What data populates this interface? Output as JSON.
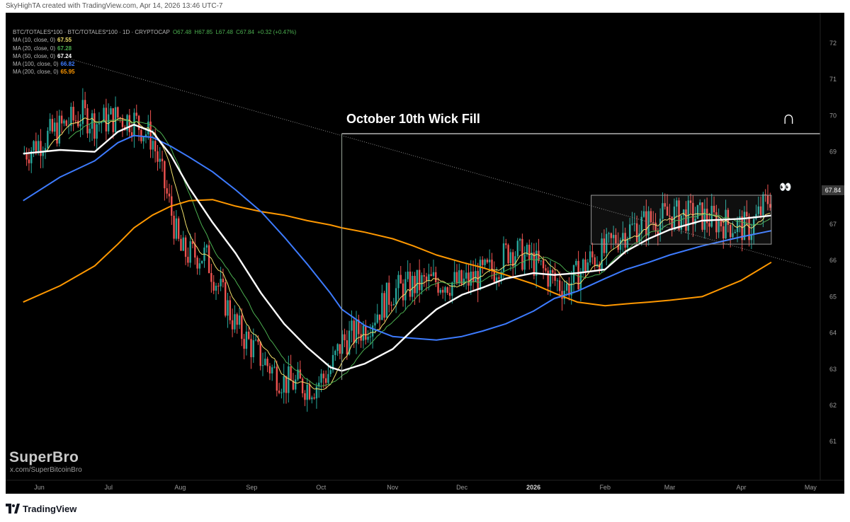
{
  "header": {
    "created_by": "SkyHighTA created with TradingView.com, Apr 14, 2026 13:46 UTC-7"
  },
  "symbol_line": {
    "symbol": "BTC/TOTALES*100 · BTC/TOTALES*100 · 1D · CRYPTOCAP",
    "open": "O67.48",
    "high": "H67.85",
    "low": "L67.48",
    "close": "C67.84",
    "change": "+0.32 (+0.47%)"
  },
  "legend": [
    {
      "label": "MA (10, close, 0)",
      "value": "67.55",
      "color": "#f2e06b"
    },
    {
      "label": "MA (20, close, 0)",
      "value": "67.28",
      "color": "#4caf50"
    },
    {
      "label": "MA (50, close, 0)",
      "value": "67.24",
      "color": "#ffffff"
    },
    {
      "label": "MA (100, close, 0)",
      "value": "66.82",
      "color": "#3d7bff"
    },
    {
      "label": "MA (200, close, 0)",
      "value": "65.95",
      "color": "#ff9800"
    }
  ],
  "annotation": {
    "label": "October 10th Wick Fill",
    "magnet_icon": "magnet-emoji",
    "eyes_icon": "eyes-emoji",
    "magnet_glyph": "∩",
    "eyes_glyph": "👀"
  },
  "price_tag": "67.84",
  "watermark": {
    "brand": "SuperBro",
    "handle": "x.com/SuperBitcoinBro"
  },
  "footer": {
    "brand": "TradingView",
    "icon": "tradingview-logo-icon"
  },
  "colors": {
    "up": "#26a69a",
    "down": "#ef5350",
    "ma10": "#f2e06b",
    "ma20": "#4caf50",
    "ma50": "#ffffff",
    "ma100": "#3d7bff",
    "ma200": "#ff9800"
  },
  "chart_data": {
    "type": "line",
    "title": "",
    "ylim": [
      60.2,
      73.0
    ],
    "yticks": [
      "72",
      "71",
      "70",
      "69",
      "68",
      "67",
      "66",
      "65",
      "64",
      "63",
      "62",
      "61"
    ],
    "xticks": [
      "Jun",
      "Jul",
      "Aug",
      "Sep",
      "Oct",
      "Nov",
      "Dec",
      "2026",
      "Feb",
      "Mar",
      "Apr",
      "May"
    ],
    "x": [
      "2025-05-25",
      "2025-06-10",
      "2025-06-25",
      "2025-07-05",
      "2025-07-12",
      "2025-07-20",
      "2025-07-28",
      "2025-08-05",
      "2025-08-15",
      "2025-08-25",
      "2025-09-05",
      "2025-09-15",
      "2025-09-25",
      "2025-10-05",
      "2025-10-10",
      "2025-10-20",
      "2025-11-01",
      "2025-11-10",
      "2025-11-20",
      "2025-12-01",
      "2025-12-10",
      "2025-12-20",
      "2026-01-01",
      "2026-01-10",
      "2026-01-20",
      "2026-02-01",
      "2026-02-10",
      "2026-02-20",
      "2026-03-01",
      "2026-03-15",
      "2026-04-01",
      "2026-04-14"
    ],
    "series": [
      {
        "name": "MA (200, close, 0)",
        "color": "#ff9800",
        "values": [
          64.85,
          65.3,
          65.85,
          66.45,
          66.9,
          67.25,
          67.5,
          67.65,
          67.68,
          67.5,
          67.35,
          67.25,
          67.1,
          66.98,
          66.9,
          66.78,
          66.6,
          66.4,
          66.15,
          65.95,
          65.8,
          65.6,
          65.35,
          65.1,
          64.85,
          64.75,
          64.8,
          64.85,
          64.9,
          65.0,
          65.45,
          65.95
        ]
      },
      {
        "name": "MA (100, close, 0)",
        "color": "#3d7bff",
        "values": [
          67.65,
          68.3,
          68.75,
          69.25,
          69.45,
          69.4,
          69.15,
          68.85,
          68.45,
          67.95,
          67.35,
          66.65,
          65.9,
          65.1,
          64.65,
          64.2,
          63.9,
          63.85,
          63.8,
          63.9,
          64.05,
          64.25,
          64.6,
          64.95,
          65.15,
          65.5,
          65.75,
          65.95,
          66.15,
          66.4,
          66.65,
          66.82
        ]
      },
      {
        "name": "MA (50, close, 0)",
        "color": "#ffffff",
        "values": [
          68.95,
          69.05,
          69.0,
          69.55,
          69.75,
          69.55,
          68.9,
          68.0,
          67.05,
          66.2,
          65.1,
          64.25,
          63.6,
          63.05,
          62.95,
          63.15,
          63.55,
          64.1,
          64.65,
          65.05,
          65.25,
          65.5,
          65.65,
          65.6,
          65.65,
          65.75,
          66.25,
          66.6,
          66.85,
          67.1,
          67.15,
          67.24
        ]
      }
    ],
    "rectangle": {
      "x": [
        "2026-01-26",
        "2026-04-14"
      ],
      "y": [
        66.45,
        67.8
      ]
    },
    "trendline": {
      "from": [
        "2025-06-15",
        71.55
      ],
      "to": [
        "2026-05-01",
        65.8
      ]
    },
    "wick_fill": {
      "x_start": "2025-10-10",
      "y_low": 62.7,
      "y_level": 69.5
    }
  }
}
